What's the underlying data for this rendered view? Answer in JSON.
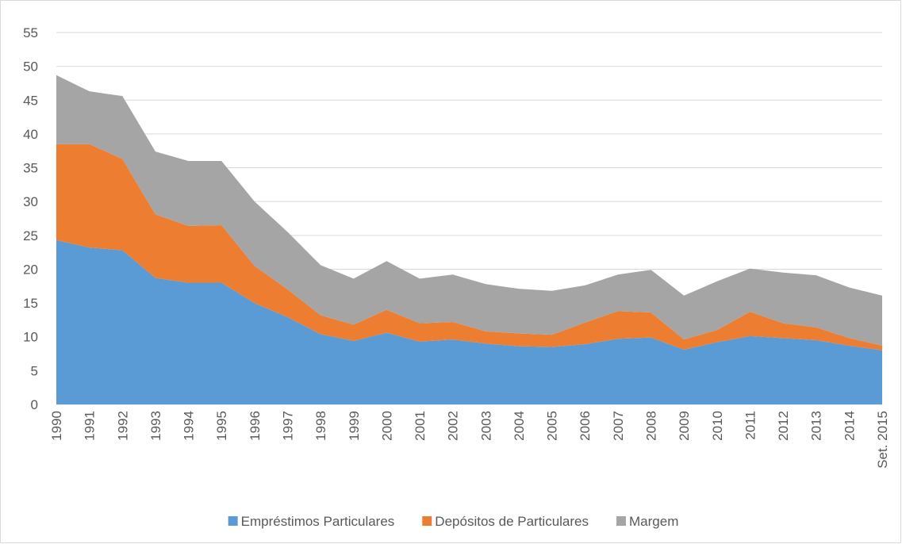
{
  "chart_data": {
    "type": "stacked-area",
    "categories": [
      "1990",
      "1991",
      "1992",
      "1993",
      "1994",
      "1995",
      "1996",
      "1997",
      "1998",
      "1999",
      "2000",
      "2001",
      "2002",
      "2003",
      "2004",
      "2005",
      "2006",
      "2007",
      "2008",
      "2009",
      "2010",
      "2011",
      "2012",
      "2013",
      "2014",
      "Set. 2015"
    ],
    "series": [
      {
        "name": "Empréstimos Particulares",
        "color": "#5b9bd5",
        "values": [
          24.3,
          23.2,
          22.8,
          18.7,
          18.0,
          18.0,
          15.0,
          12.9,
          10.4,
          9.4,
          10.6,
          9.3,
          9.6,
          9.0,
          8.6,
          8.5,
          8.9,
          9.7,
          9.9,
          8.1,
          9.2,
          10.1,
          9.8,
          9.5,
          8.7,
          8.0
        ]
      },
      {
        "name": "Depósitos de Particulares",
        "color": "#ed7d31",
        "values": [
          14.2,
          15.3,
          13.5,
          9.4,
          8.4,
          8.5,
          5.5,
          4.1,
          2.8,
          2.4,
          3.4,
          2.7,
          2.6,
          1.8,
          1.9,
          1.8,
          3.2,
          4.1,
          3.7,
          1.5,
          1.8,
          3.6,
          2.2,
          1.9,
          1.1,
          0.7
        ]
      },
      {
        "name": "Margem",
        "color": "#a5a5a5",
        "values": [
          10.2,
          7.8,
          9.3,
          9.3,
          9.6,
          9.5,
          9.5,
          8.5,
          7.4,
          6.8,
          7.2,
          6.6,
          7.0,
          7.0,
          6.6,
          6.5,
          5.5,
          5.4,
          6.3,
          6.5,
          7.2,
          6.4,
          7.5,
          7.7,
          7.5,
          7.4
        ]
      }
    ],
    "ylim": [
      0,
      55
    ],
    "yticks": [
      0,
      5,
      10,
      15,
      20,
      25,
      30,
      35,
      40,
      45,
      50,
      55
    ],
    "grid": true,
    "legend": "bottom"
  }
}
